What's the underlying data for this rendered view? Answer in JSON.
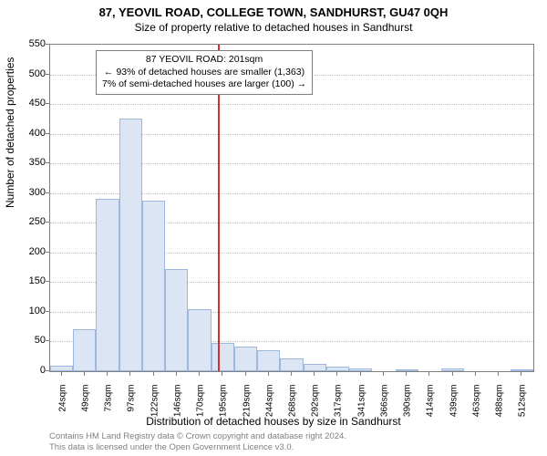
{
  "title": "87, YEOVIL ROAD, COLLEGE TOWN, SANDHURST, GU47 0QH",
  "subtitle": "Size of property relative to detached houses in Sandhurst",
  "ylabel": "Number of detached properties",
  "xlabel": "Distribution of detached houses by size in Sandhurst",
  "footer_line1": "Contains HM Land Registry data © Crown copyright and database right 2024.",
  "footer_line2": "This data is licensed under the Open Government Licence v3.0.",
  "chart": {
    "type": "histogram",
    "ylim": [
      0,
      550
    ],
    "ytick_step": 50,
    "bar_fill": "#dbe5f4",
    "bar_stroke": "#9db7dd",
    "grid_color": "#c0c0c0",
    "background_color": "#ffffff",
    "marker_color": "#d03030",
    "x_categories": [
      "24sqm",
      "49sqm",
      "73sqm",
      "97sqm",
      "122sqm",
      "146sqm",
      "170sqm",
      "195sqm",
      "219sqm",
      "244sqm",
      "268sqm",
      "292sqm",
      "317sqm",
      "341sqm",
      "366sqm",
      "390sqm",
      "414sqm",
      "439sqm",
      "463sqm",
      "488sqm",
      "512sqm"
    ],
    "values": [
      10,
      70,
      290,
      425,
      288,
      172,
      105,
      48,
      42,
      35,
      22,
      12,
      8,
      5,
      0,
      3,
      0,
      5,
      0,
      0,
      3
    ],
    "marker_index": 7
  },
  "info_box": {
    "line1": "87 YEOVIL ROAD: 201sqm",
    "line2": "← 93% of detached houses are smaller (1,363)",
    "line3": "7% of semi-detached houses are larger (100) →"
  }
}
